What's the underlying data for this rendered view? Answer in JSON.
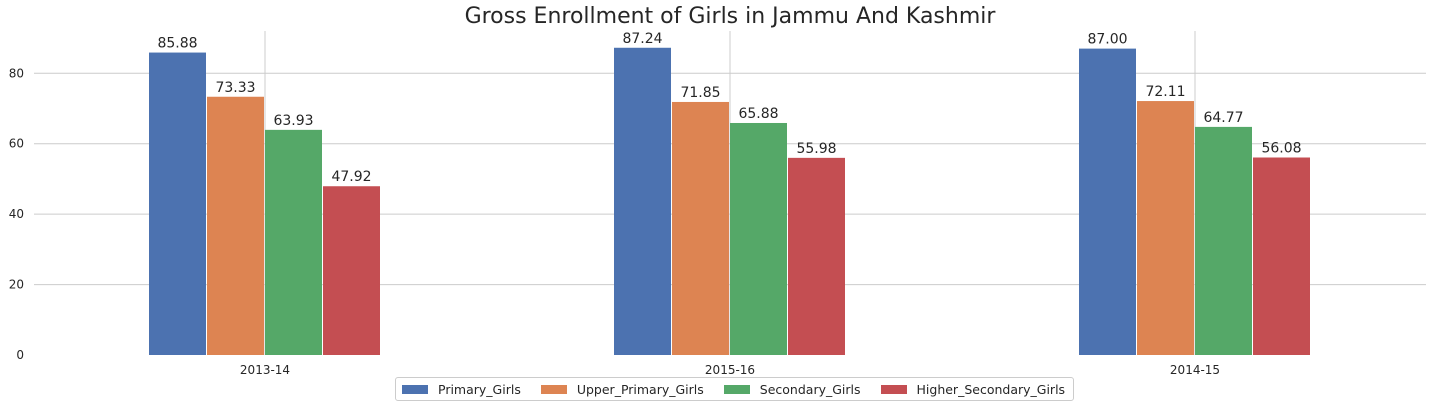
{
  "chart_data": {
    "type": "bar",
    "title": "Gross Enrollment of Girls in Jammu And Kashmir",
    "xlabel": "",
    "ylabel": "",
    "categories": [
      "2013-14",
      "2015-16",
      "2014-15"
    ],
    "series": [
      {
        "name": "Primary_Girls",
        "color": "#4c72b0",
        "values": [
          85.88,
          87.24,
          87.0
        ],
        "labels": [
          "85.88",
          "87.24",
          "87.00"
        ]
      },
      {
        "name": "Upper_Primary_Girls",
        "color": "#dd8452",
        "values": [
          73.33,
          71.85,
          72.11
        ],
        "labels": [
          "73.33",
          "71.85",
          "72.11"
        ]
      },
      {
        "name": "Secondary_Girls",
        "color": "#55a868",
        "values": [
          63.93,
          65.88,
          64.77
        ],
        "labels": [
          "63.93",
          "65.88",
          "64.77"
        ]
      },
      {
        "name": "Higher_Secondary_Girls",
        "color": "#c44e52",
        "values": [
          47.92,
          55.98,
          56.08
        ],
        "labels": [
          "47.92",
          "55.98",
          "56.08"
        ]
      }
    ],
    "ylim": [
      0,
      92
    ],
    "yticks": [
      "0",
      "20",
      "40",
      "60",
      "80"
    ],
    "grid": true,
    "legend_position": "bottom-center"
  }
}
